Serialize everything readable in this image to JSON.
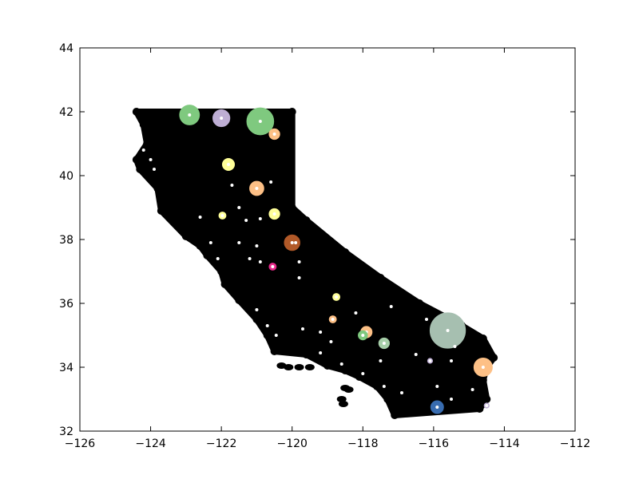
{
  "chart_data": {
    "type": "scatter",
    "title": "",
    "xlabel": "",
    "ylabel": "",
    "xlim": [
      -126,
      -112
    ],
    "ylim": [
      32,
      44
    ],
    "x_ticks": [
      -126,
      -124,
      -122,
      -120,
      -118,
      -116,
      -114,
      -112
    ],
    "y_ticks": [
      32,
      34,
      36,
      38,
      40,
      42,
      44
    ],
    "x_tick_labels": [
      "−126",
      "−124",
      "−122",
      "−120",
      "−118",
      "−116",
      "−114",
      "−112"
    ],
    "y_tick_labels": [
      "32",
      "34",
      "36",
      "38",
      "40",
      "42",
      "44"
    ],
    "grid": false,
    "legend": "none",
    "background_color": "#000000",
    "background_outline": [
      [
        -124.4,
        42.0
      ],
      [
        -120.0,
        42.0
      ],
      [
        -120.0,
        39.0
      ],
      [
        -119.6,
        38.6
      ],
      [
        -118.5,
        37.6
      ],
      [
        -117.5,
        36.8
      ],
      [
        -116.4,
        36.0
      ],
      [
        -115.2,
        35.3
      ],
      [
        -114.6,
        34.9
      ],
      [
        -114.3,
        34.3
      ],
      [
        -114.5,
        34.0
      ],
      [
        -114.6,
        33.6
      ],
      [
        -114.5,
        33.0
      ],
      [
        -114.7,
        32.7
      ],
      [
        -117.1,
        32.5
      ],
      [
        -117.3,
        33.0
      ],
      [
        -117.6,
        33.4
      ],
      [
        -118.1,
        33.7
      ],
      [
        -118.5,
        33.9
      ],
      [
        -119.0,
        34.05
      ],
      [
        -119.6,
        34.4
      ],
      [
        -120.5,
        34.5
      ],
      [
        -120.7,
        35.0
      ],
      [
        -121.0,
        35.5
      ],
      [
        -121.5,
        36.1
      ],
      [
        -121.9,
        36.6
      ],
      [
        -122.0,
        37.0
      ],
      [
        -122.4,
        37.5
      ],
      [
        -122.6,
        37.8
      ],
      [
        -123.0,
        38.1
      ],
      [
        -123.7,
        38.9
      ],
      [
        -123.8,
        39.6
      ],
      [
        -124.3,
        40.2
      ],
      [
        -124.4,
        40.5
      ],
      [
        -124.1,
        41.0
      ],
      [
        -124.2,
        41.6
      ]
    ],
    "background_islands": [
      [
        -118.5,
        33.35
      ],
      [
        -118.4,
        33.3
      ],
      [
        -118.6,
        33.0
      ],
      [
        -118.55,
        32.85
      ],
      [
        -119.5,
        34.0
      ],
      [
        -119.8,
        34.0
      ],
      [
        -120.1,
        34.0
      ],
      [
        -120.3,
        34.05
      ],
      [
        -117.9,
        33.6
      ]
    ],
    "clusters": [
      {
        "x": -122.9,
        "y": 41.9,
        "r": 0.28,
        "color": "#7fc97f"
      },
      {
        "x": -122.0,
        "y": 41.8,
        "r": 0.24,
        "color": "#beaed4"
      },
      {
        "x": -120.9,
        "y": 41.7,
        "r": 0.38,
        "color": "#7fc97f"
      },
      {
        "x": -120.5,
        "y": 41.3,
        "r": 0.15,
        "color": "#fdc086"
      },
      {
        "x": -121.8,
        "y": 40.35,
        "r": 0.17,
        "color": "#ffff99"
      },
      {
        "x": -121.0,
        "y": 39.6,
        "r": 0.2,
        "color": "#fdc086"
      },
      {
        "x": -120.5,
        "y": 38.8,
        "r": 0.15,
        "color": "#ffff99"
      },
      {
        "x": -121.97,
        "y": 38.75,
        "r": 0.1,
        "color": "#ffff99"
      },
      {
        "x": -120.0,
        "y": 37.9,
        "r": 0.22,
        "color": "#b15928"
      },
      {
        "x": -120.55,
        "y": 37.15,
        "r": 0.1,
        "color": "#e7298a"
      },
      {
        "x": -118.75,
        "y": 36.2,
        "r": 0.1,
        "color": "#ffff99"
      },
      {
        "x": -118.85,
        "y": 35.5,
        "r": 0.1,
        "color": "#fdc086"
      },
      {
        "x": -117.9,
        "y": 35.1,
        "r": 0.16,
        "color": "#fdc086"
      },
      {
        "x": -118.0,
        "y": 35.0,
        "r": 0.13,
        "color": "#7fc97f"
      },
      {
        "x": -117.4,
        "y": 34.75,
        "r": 0.15,
        "color": "#a6cea8"
      },
      {
        "x": -115.6,
        "y": 35.15,
        "r": 0.5,
        "color": "#a6bfb0"
      },
      {
        "x": -114.6,
        "y": 34.0,
        "r": 0.26,
        "color": "#fdc086"
      },
      {
        "x": -115.9,
        "y": 32.75,
        "r": 0.18,
        "color": "#386cb0"
      },
      {
        "x": -116.1,
        "y": 34.2,
        "r": 0.07,
        "color": "#beaed4"
      },
      {
        "x": -114.5,
        "y": 32.8,
        "r": 0.07,
        "color": "#beaed4"
      }
    ],
    "white_points": [
      [
        -124.2,
        40.8
      ],
      [
        -124.0,
        40.5
      ],
      [
        -123.9,
        40.2
      ],
      [
        -121.7,
        39.7
      ],
      [
        -121.5,
        39.0
      ],
      [
        -120.6,
        39.8
      ],
      [
        -120.9,
        38.65
      ],
      [
        -121.3,
        38.6
      ],
      [
        -122.6,
        38.7
      ],
      [
        -122.3,
        37.9
      ],
      [
        -122.1,
        37.4
      ],
      [
        -121.5,
        37.9
      ],
      [
        -121.2,
        37.4
      ],
      [
        -121.0,
        37.8
      ],
      [
        -120.9,
        37.3
      ],
      [
        -119.9,
        37.9
      ],
      [
        -119.8,
        37.3
      ],
      [
        -119.8,
        36.8
      ],
      [
        -119.7,
        35.2
      ],
      [
        -119.2,
        35.1
      ],
      [
        -118.9,
        34.8
      ],
      [
        -118.2,
        35.7
      ],
      [
        -117.2,
        35.9
      ],
      [
        -116.5,
        34.4
      ],
      [
        -115.9,
        33.4
      ],
      [
        -115.5,
        33.0
      ],
      [
        -114.9,
        33.3
      ],
      [
        -115.5,
        34.2
      ],
      [
        -117.5,
        34.2
      ],
      [
        -118.0,
        33.8
      ],
      [
        -117.4,
        33.4
      ],
      [
        -116.9,
        33.2
      ],
      [
        -118.6,
        34.1
      ],
      [
        -119.2,
        34.45
      ],
      [
        -120.45,
        35.0
      ],
      [
        -120.7,
        35.3
      ],
      [
        -121.0,
        35.8
      ],
      [
        -116.2,
        35.5
      ],
      [
        -115.4,
        34.65
      ]
    ]
  }
}
